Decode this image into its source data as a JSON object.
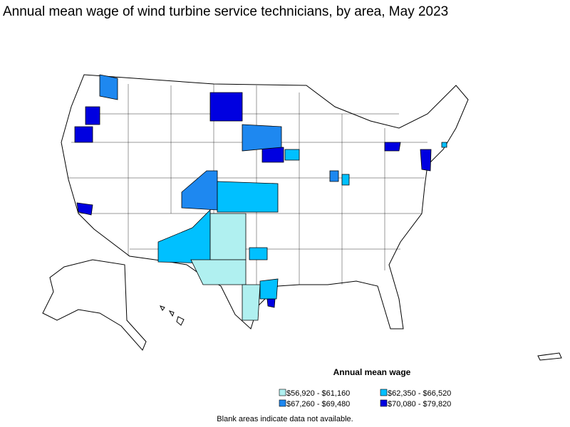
{
  "title": "Annual mean wage of wind turbine service technicians, by area, May 2023",
  "legend": {
    "title": "Annual mean wage",
    "items": [
      {
        "label": "$56,920 - $61,160",
        "color": "#b0f0f0"
      },
      {
        "label": "$62,350 - $66,520",
        "color": "#00c0ff"
      },
      {
        "label": "$67,260 - $69,480",
        "color": "#1e88f0"
      },
      {
        "label": "$70,080 - $79,820",
        "color": "#0000e0"
      }
    ]
  },
  "note": "Blank areas indicate data not available."
}
